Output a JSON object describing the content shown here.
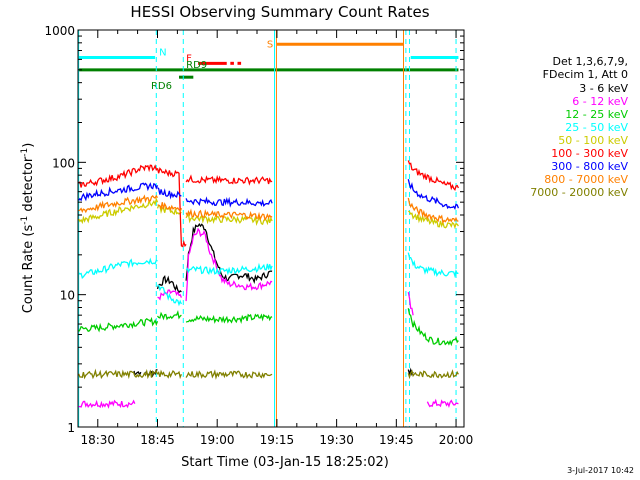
{
  "chart_data": {
    "type": "line",
    "title": "HESSI Observing Summary Count Rates",
    "xlabel": "Start Time (03-Jan-15 18:25:02)",
    "ylabel_main": "Count Rate (s",
    "ylabel_sup1": "-1",
    "ylabel_mid": " detector",
    "ylabel_sup2": "-1",
    "ylabel_end": ")",
    "yscale": "log",
    "ylim": [
      1,
      1000
    ],
    "xlim": [
      18.4172,
      20.0333
    ],
    "x_ticks": [
      {
        "t": 18.5,
        "label": "18:30"
      },
      {
        "t": 18.75,
        "label": "18:45"
      },
      {
        "t": 19.0,
        "label": "19:00"
      },
      {
        "t": 19.25,
        "label": "19:15"
      },
      {
        "t": 19.5,
        "label": "19:30"
      },
      {
        "t": 19.75,
        "label": "19:45"
      },
      {
        "t": 20.0,
        "label": "20:00"
      }
    ],
    "y_ticks": [
      {
        "v": 1,
        "label": "1"
      },
      {
        "v": 10,
        "label": "10"
      },
      {
        "v": 100,
        "label": "100"
      },
      {
        "v": 1000,
        "label": "1000"
      }
    ],
    "legend_header": [
      "Det 1,3,6,7,9,",
      "FDecim 1, Att 0"
    ],
    "series": [
      {
        "name": "3 - 6 keV",
        "color": "#000000",
        "segments": [
          {
            "x": [
              18.65,
              18.655,
              18.68
            ],
            "y": [
              2.6,
              2.6,
              2.6
            ]
          },
          {
            "x": [
              18.7,
              18.74,
              18.75
            ],
            "y": [
              2.5,
              2.6,
              2.7
            ]
          },
          {
            "x": [
              18.75,
              18.78,
              18.81,
              18.83,
              18.85
            ],
            "y": [
              11.5,
              13,
              12.5,
              11,
              10.5
            ]
          },
          {
            "x": [
              18.87,
              18.88,
              18.9,
              18.92,
              18.95,
              18.97,
              19.0,
              19.02,
              19.05,
              19.08,
              19.12,
              19.16,
              19.2,
              19.23
            ],
            "y": [
              13,
              20,
              30,
              34,
              32,
              24,
              17,
              14,
              13,
              14,
              14,
              13,
              14,
              15
            ]
          },
          {
            "x": [
              19.8,
              19.82
            ],
            "y": [
              2.6,
              2.6
            ]
          }
        ]
      },
      {
        "name": "6 - 12 keV",
        "color": "#ff00ff",
        "segments": [
          {
            "x": [
              18.42,
              18.5,
              18.55,
              18.62,
              18.655
            ],
            "y": [
              1.5,
              1.5,
              1.5,
              1.5,
              1.5
            ]
          },
          {
            "x": [
              18.75,
              18.78,
              18.81,
              18.83,
              18.85
            ],
            "y": [
              9.5,
              10,
              10.5,
              10,
              9.5
            ]
          },
          {
            "x": [
              18.87,
              18.88,
              18.9,
              18.92,
              18.95,
              18.97,
              19.0,
              19.02,
              19.05,
              19.08,
              19.12,
              19.16,
              19.2,
              19.23
            ],
            "y": [
              9,
              19,
              27,
              30,
              28,
              21,
              16,
              13,
              12,
              12,
              11.5,
              11.5,
              12,
              12.5
            ]
          },
          {
            "x": [
              19.8,
              19.81,
              19.82
            ],
            "y": [
              10,
              8,
              7
            ]
          },
          {
            "x": [
              19.88,
              19.92,
              19.96,
              20.01
            ],
            "y": [
              1.5,
              1.5,
              1.5,
              1.5
            ]
          }
        ]
      },
      {
        "name": "12 - 25 keV",
        "color": "#00cc00",
        "segments": [
          {
            "x": [
              18.42,
              18.5,
              18.6,
              18.7,
              18.75
            ],
            "y": [
              5.5,
              5.6,
              5.9,
              6.2,
              6.3
            ]
          },
          {
            "x": [
              18.75,
              18.78,
              18.81,
              18.85
            ],
            "y": [
              6.8,
              6.9,
              7.0,
              7.0
            ]
          },
          {
            "x": [
              18.87,
              18.9,
              19.0,
              19.1,
              19.2,
              19.23
            ],
            "y": [
              6.5,
              6.6,
              6.5,
              6.6,
              6.8,
              6.8
            ]
          },
          {
            "x": [
              19.8,
              19.82,
              19.86,
              19.9,
              19.95,
              20.01
            ],
            "y": [
              8,
              6,
              5,
              4.5,
              4.4,
              4.5
            ]
          }
        ]
      },
      {
        "name": "25 - 50 keV",
        "color": "#00ffff",
        "segments": [
          {
            "x": [
              18.42,
              18.5,
              18.55,
              18.6,
              18.66,
              18.7,
              18.75
            ],
            "y": [
              14,
              15,
              16,
              17,
              17.5,
              18,
              18
            ]
          },
          {
            "x": [
              18.75,
              18.8,
              18.83,
              18.85
            ],
            "y": [
              12,
              9.5,
              9,
              8.5
            ]
          },
          {
            "x": [
              18.87,
              18.9,
              19.0,
              19.1,
              19.2,
              19.23
            ],
            "y": [
              15,
              15.5,
              15,
              15.5,
              16,
              16.5
            ]
          },
          {
            "x": [
              19.8,
              19.82,
              19.86,
              19.9,
              19.95,
              20.01
            ],
            "y": [
              21,
              17,
              15.5,
              15,
              14.5,
              14.5
            ]
          }
        ]
      },
      {
        "name": "50 - 100 keV",
        "color": "#cccc00",
        "segments": [
          {
            "x": [
              18.42,
              18.5,
              18.6,
              18.7,
              18.75
            ],
            "y": [
              36,
              39,
              44,
              48,
              50
            ]
          },
          {
            "x": [
              18.75,
              18.8,
              18.85
            ],
            "y": [
              45,
              43,
              42
            ]
          },
          {
            "x": [
              18.87,
              18.9,
              19.0,
              19.1,
              19.2,
              19.23
            ],
            "y": [
              38,
              38,
              37,
              37,
              36,
              36
            ]
          },
          {
            "x": [
              19.8,
              19.82,
              19.86,
              19.9,
              19.95,
              20.01
            ],
            "y": [
              45,
              40,
              37,
              35,
              34,
              33
            ]
          }
        ]
      },
      {
        "name": "100 - 300 keV",
        "color": "#ff0000",
        "segments": [
          {
            "x": [
              18.42,
              18.5,
              18.6,
              18.68,
              18.72,
              18.75
            ],
            "y": [
              67,
              72,
              79,
              90,
              92,
              90
            ]
          },
          {
            "x": [
              18.75,
              18.8,
              18.84,
              18.85,
              18.87
            ],
            "y": [
              86,
              83,
              82,
              24,
              24
            ]
          },
          {
            "x": [
              18.87,
              18.9,
              19.0,
              19.1,
              19.2,
              19.23
            ],
            "y": [
              75,
              74,
              73,
              73,
              73,
              72
            ]
          },
          {
            "x": [
              19.8,
              19.82,
              19.86,
              19.9,
              19.95,
              20.01
            ],
            "y": [
              100,
              88,
              80,
              75,
              68,
              64
            ]
          }
        ]
      },
      {
        "name": "300 - 800 keV",
        "color": "#0000ff",
        "segments": [
          {
            "x": [
              18.42,
              18.5,
              18.6,
              18.7,
              18.75
            ],
            "y": [
              54,
              58,
              62,
              66,
              67
            ]
          },
          {
            "x": [
              18.75,
              18.8,
              18.85
            ],
            "y": [
              61,
              58,
              56
            ]
          },
          {
            "x": [
              18.87,
              18.9,
              19.0,
              19.1,
              19.2,
              19.23
            ],
            "y": [
              52,
              51,
              50,
              50,
              49,
              49
            ]
          },
          {
            "x": [
              19.8,
              19.82,
              19.86,
              19.9,
              19.95,
              20.01
            ],
            "y": [
              72,
              62,
              55,
              52,
              48,
              45
            ]
          }
        ]
      },
      {
        "name": "800 - 7000 keV",
        "color": "#ff8000",
        "segments": [
          {
            "x": [
              18.42,
              18.5,
              18.6,
              18.7,
              18.75
            ],
            "y": [
              43,
              46,
              50,
              53,
              54
            ]
          },
          {
            "x": [
              18.75,
              18.8,
              18.85
            ],
            "y": [
              48,
              46,
              45
            ]
          },
          {
            "x": [
              18.87,
              18.9,
              19.0,
              19.1,
              19.2,
              19.23
            ],
            "y": [
              41,
              41,
              40,
              40,
              39,
              39
            ]
          },
          {
            "x": [
              19.8,
              19.82,
              19.86,
              19.9,
              19.95,
              20.01
            ],
            "y": [
              52,
              45,
              41,
              39,
              37,
              36
            ]
          }
        ]
      },
      {
        "name": "7000 - 20000 keV",
        "color": "#808000",
        "segments": [
          {
            "x": [
              18.42,
              18.5,
              18.6,
              18.7,
              18.75
            ],
            "y": [
              2.5,
              2.5,
              2.5,
              2.5,
              2.5
            ]
          },
          {
            "x": [
              18.75,
              18.8,
              18.85
            ],
            "y": [
              2.5,
              2.5,
              2.5
            ]
          },
          {
            "x": [
              18.87,
              18.95,
              19.05,
              19.15,
              19.23
            ],
            "y": [
              2.5,
              2.5,
              2.5,
              2.5,
              2.5
            ]
          },
          {
            "x": [
              19.8,
              19.85,
              19.9,
              19.95,
              20.01
            ],
            "y": [
              2.5,
              2.5,
              2.5,
              2.5,
              2.5
            ]
          }
        ]
      }
    ],
    "flags": [
      {
        "label": "N",
        "color": "#00ffff",
        "y": 620,
        "segments": [
          [
            18.42,
            18.74
          ],
          [
            19.81,
            20.01
          ]
        ]
      },
      {
        "label": "S",
        "color": "#ff8000",
        "y": 780,
        "segments": [
          [
            19.25,
            19.78
          ]
        ]
      },
      {
        "label": "F",
        "color": "#ff0000",
        "y": 560,
        "segments": [
          [
            18.92,
            19.04
          ],
          [
            19.055,
            19.07
          ],
          [
            19.085,
            19.1
          ]
        ]
      },
      {
        "label": "RD9",
        "color": "#008000",
        "y": 500,
        "segments": [
          [
            18.42,
            20.01
          ]
        ]
      },
      {
        "label": "RD6",
        "color": "#008000",
        "y": 440,
        "segments": [
          [
            18.84,
            18.9
          ]
        ]
      }
    ],
    "vlines": [
      {
        "t": 18.745,
        "color": "#00ffff",
        "style": "dashed"
      },
      {
        "t": 18.858,
        "color": "#00ffff",
        "style": "dashed"
      },
      {
        "t": 19.24,
        "color": "#00ffff",
        "style": "solid"
      },
      {
        "t": 19.248,
        "color": "#ff8000",
        "style": "solid"
      },
      {
        "t": 19.78,
        "color": "#ff8000",
        "style": "solid"
      },
      {
        "t": 19.79,
        "color": "#00ffff",
        "style": "dashed"
      },
      {
        "t": 19.805,
        "color": "#00ffff",
        "style": "dashed"
      },
      {
        "t": 20.0,
        "color": "#00ffff",
        "style": "dashed"
      },
      {
        "t": 18.42,
        "color": "#00ffff",
        "style": "solid"
      }
    ],
    "timestamp": "3-Jul-2017 10:42"
  }
}
